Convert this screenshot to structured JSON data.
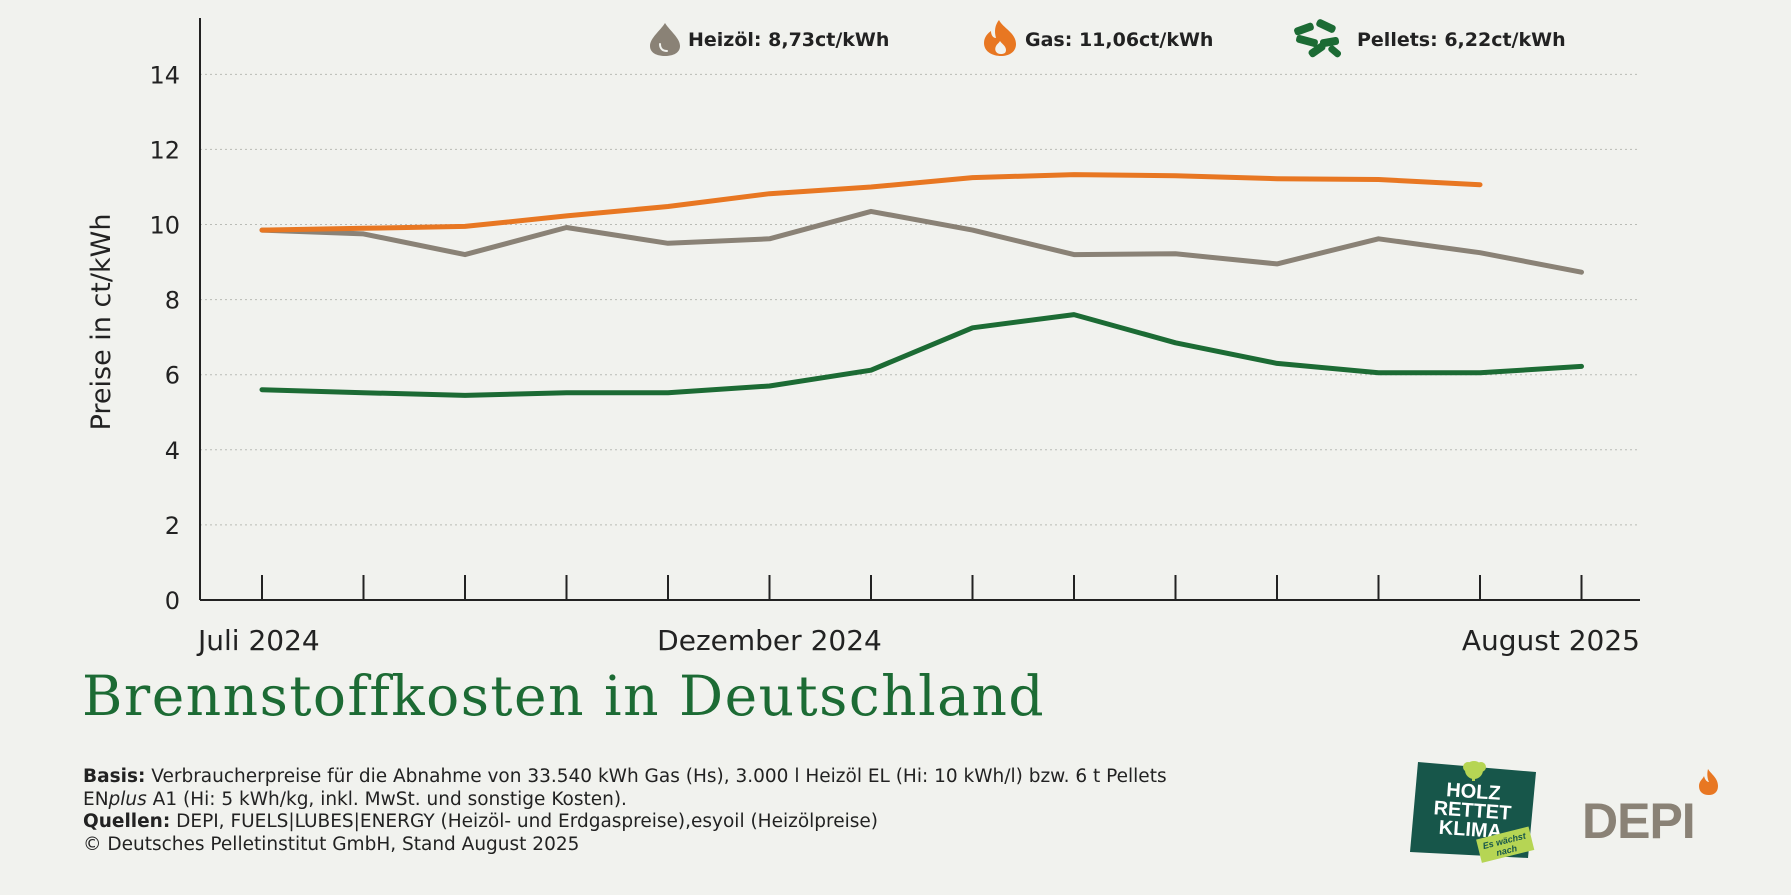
{
  "chart_data": {
    "type": "line",
    "title": "Brennstoffkosten in Deutschland",
    "ylabel": "Preise in ct/kWh",
    "xlabel": "",
    "ylim": [
      0,
      15.5
    ],
    "yticks": [
      0,
      2,
      4,
      6,
      8,
      10,
      12,
      14
    ],
    "grid": "horizontal dotted",
    "x": [
      "2024-07",
      "2024-08",
      "2024-09",
      "2024-10",
      "2024-11",
      "2024-12",
      "2025-01",
      "2025-02",
      "2025-03",
      "2025-04",
      "2025-05",
      "2025-06",
      "2025-07",
      "2025-08"
    ],
    "x_tick_labels": [
      {
        "x": "2024-07",
        "label": "Juli 2024"
      },
      {
        "x": "2024-12",
        "label": "Dezember 2024"
      },
      {
        "x": "2025-08",
        "label": "August 2025"
      }
    ],
    "legend_position": "top",
    "series": [
      {
        "key": "heizoel",
        "name": "Heizöl",
        "legend_label": "Heizöl: 8,73ct/kWh",
        "color": "#8a8276",
        "icon": "oil-drop-icon",
        "values": [
          9.85,
          9.75,
          9.2,
          9.92,
          9.5,
          9.62,
          10.35,
          9.85,
          9.2,
          9.22,
          8.95,
          9.62,
          9.25,
          8.73
        ]
      },
      {
        "key": "gas",
        "name": "Gas",
        "legend_label": "Gas: 11,06ct/kWh",
        "color": "#e87722",
        "icon": "flame-icon",
        "values": [
          9.85,
          9.9,
          9.95,
          10.23,
          10.48,
          10.82,
          11.0,
          11.25,
          11.33,
          11.3,
          11.22,
          11.2,
          11.06,
          null
        ]
      },
      {
        "key": "pellets",
        "name": "Pellets",
        "legend_label": "Pellets: 6,22ct/kWh",
        "color": "#1c6b34",
        "icon": "pellets-icon",
        "values": [
          5.6,
          5.52,
          5.45,
          5.52,
          5.52,
          5.7,
          6.12,
          7.25,
          7.6,
          6.85,
          6.3,
          6.05,
          6.05,
          6.22
        ]
      }
    ]
  },
  "notes": {
    "basis_label": "Basis:",
    "basis_text_1": "Verbraucherpreise für die Abnahme von 33.540 kWh Gas (Hs), 3.000 l Heizöl EL (Hi: 10 kWh/l) bzw. 6 t Pellets",
    "basis_text_2a": "EN",
    "basis_text_2b": "plus",
    "basis_text_2c": "A1 (Hi: 5 kWh/kg, inkl. MwSt. und sonstige Kosten).",
    "sources_label": "Quellen:",
    "sources_text": "DEPI, FUELS|LUBES|ENERGY (Heizöl- und Erdgaspreise),esyoil (Heizölpreise)",
    "copyright": "© Deutsches Pelletinstitut GmbH, Stand August 2025"
  },
  "logos": {
    "holz_line1": "HOLZ",
    "holz_line2": "RETTET",
    "holz_line3": "KLIMA",
    "holz_tag1": "Es wächst",
    "holz_tag2": "nach",
    "depi": "DEPI"
  },
  "colors": {
    "background": "#f1f2ee",
    "brand_green": "#1c6b34",
    "brand_orange": "#e87722",
    "depi_grey": "#8a8276"
  }
}
